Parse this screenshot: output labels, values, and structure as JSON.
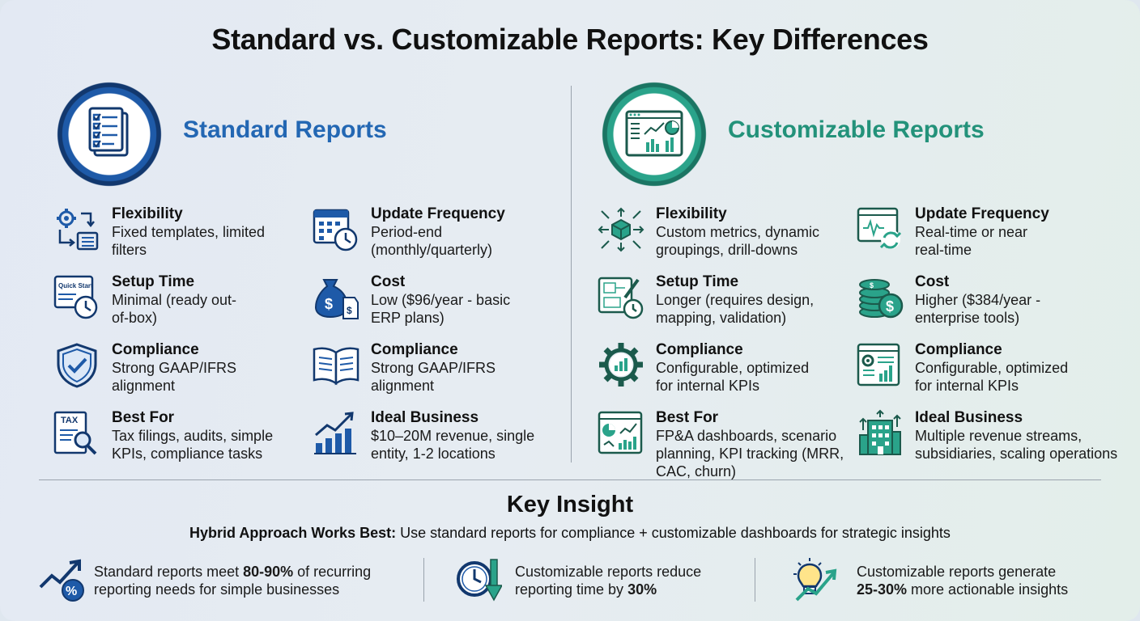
{
  "title": "Standard vs. Customizable Reports: Key Differences",
  "colors": {
    "standard": "#2367b3",
    "customizable": "#23927a",
    "navy": "#12386e"
  },
  "standard": {
    "heading": "Standard Reports",
    "hero_icon": "document-checklist-icon",
    "features": [
      {
        "icon": "gear-arrows-icon",
        "name": "Flexibility",
        "desc": "Fixed templates, limited filters"
      },
      {
        "icon": "calendar-clock-icon",
        "name": "Update Frequency",
        "desc": "Period-end (monthly/quarterly)"
      },
      {
        "icon": "quick-start-clock-icon",
        "name": "Setup Time",
        "desc": "Minimal (ready out-of-box)",
        "icon_text": "Quick Start"
      },
      {
        "icon": "money-bag-icon",
        "name": "Cost",
        "desc": "Low ($96/year - basic ERP plans)"
      },
      {
        "icon": "shield-check-icon",
        "name": "Compliance",
        "desc": "Strong GAAP/IFRS alignment"
      },
      {
        "icon": "open-book-icon",
        "name": "Compliance",
        "desc": "Strong GAAP/IFRS alignment"
      },
      {
        "icon": "tax-document-icon",
        "name": "Best For",
        "desc": "Tax filings, audits, simple KPIs, compliance tasks",
        "icon_text": "TAX"
      },
      {
        "icon": "growth-chart-icon",
        "name": "Ideal Business",
        "desc": "$10–20M revenue, single entity, 1-2 locations"
      }
    ]
  },
  "customizable": {
    "heading": "Customizable Reports",
    "hero_icon": "dashboard-icon",
    "features": [
      {
        "icon": "cube-arrows-icon",
        "name": "Flexibility",
        "desc": "Custom metrics, dynamic groupings, drill-downs"
      },
      {
        "icon": "window-refresh-icon",
        "name": "Update Frequency",
        "desc": "Real-time or near real-time"
      },
      {
        "icon": "blueprint-timer-icon",
        "name": "Setup Time",
        "desc": "Longer (requires design, mapping, validation)"
      },
      {
        "icon": "coin-stack-icon",
        "name": "Cost",
        "desc": "Higher ($384/year - enterprise tools)"
      },
      {
        "icon": "gear-chart-icon",
        "name": "Compliance",
        "desc": "Configurable, optimized for internal KPIs"
      },
      {
        "icon": "report-gear-icon",
        "name": "Compliance",
        "desc": "Configurable, optimized for internal KPIs"
      },
      {
        "icon": "fpa-dashboard-icon",
        "name": "Best For",
        "desc": "FP&A dashboards, scenario planning, KPI tracking (MRR, CAC, churn)"
      },
      {
        "icon": "building-arrows-icon",
        "name": "Ideal Business",
        "desc": "Multiple revenue streams, subsidiaries, scaling operations"
      }
    ]
  },
  "insight": {
    "title": "Key Insight",
    "lead": "Hybrid Approach Works Best:",
    "text": " Use standard reports for compliance + customizable dashboards for strategic insights",
    "facts": [
      {
        "icon": "percent-trend-icon",
        "pre": "Standard reports meet ",
        "bold": "80-90%",
        "post": " of recurring",
        "line2": "reporting needs for simple businesses"
      },
      {
        "icon": "clock-down-arrow-icon",
        "pre": "Customizable reports reduce",
        "bold": "",
        "post": "",
        "line2": "reporting time by ",
        "line2_bold": "30%"
      },
      {
        "icon": "lightbulb-growth-icon",
        "pre": "Customizable reports generate",
        "bold": "",
        "post": "",
        "line2_bold_first": "25-30%",
        "line2": " more actionable insights"
      }
    ]
  }
}
